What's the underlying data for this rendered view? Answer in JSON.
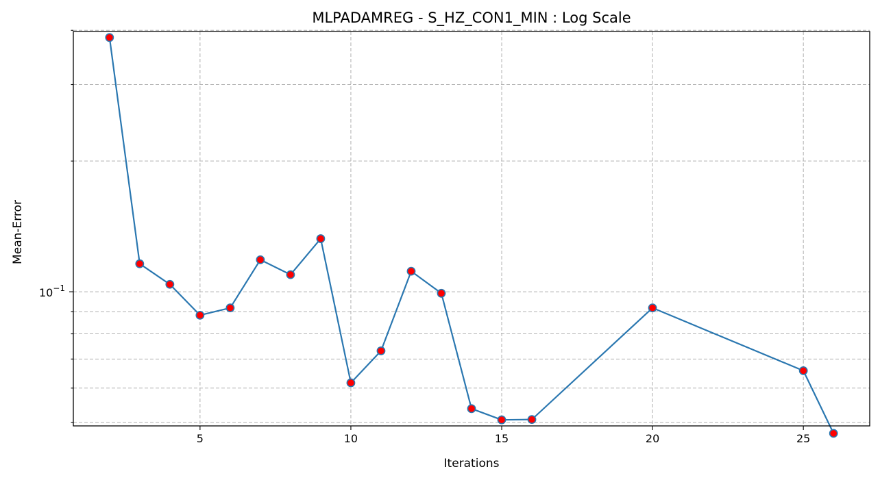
{
  "chart_data": {
    "type": "line",
    "title": "MLPADAMREG - S_HZ_CON1_MIN : Log Scale",
    "xlabel": "Iterations",
    "ylabel": "Mean-Error",
    "yscale": "log",
    "xlim": [
      0.8,
      27.2
    ],
    "ylim": [
      0.0491,
      0.3975
    ],
    "x_ticks": [
      5,
      10,
      15,
      20,
      25
    ],
    "y_ticks": [
      {
        "value": 0.1,
        "base": "10",
        "exponent": "−1"
      }
    ],
    "y_minor_ticks": [
      0.05,
      0.06,
      0.07,
      0.08,
      0.09,
      0.2,
      0.3,
      0.4
    ],
    "grid": true,
    "line_color": "#2a77b0",
    "marker_face_color": "#ff0000",
    "marker_edge_color": "#2a77b0",
    "series": [
      {
        "x": [
          2,
          3,
          4,
          5,
          6,
          7,
          8,
          9,
          10,
          11,
          12,
          13,
          14,
          15,
          16,
          20,
          25,
          26
        ],
        "y": [
          0.385,
          0.116,
          0.104,
          0.0883,
          0.0918,
          0.1185,
          0.1095,
          0.1325,
          0.0617,
          0.0731,
          0.1115,
          0.0992,
          0.0538,
          0.0507,
          0.0508,
          0.0918,
          0.0658,
          0.0472
        ]
      }
    ]
  }
}
